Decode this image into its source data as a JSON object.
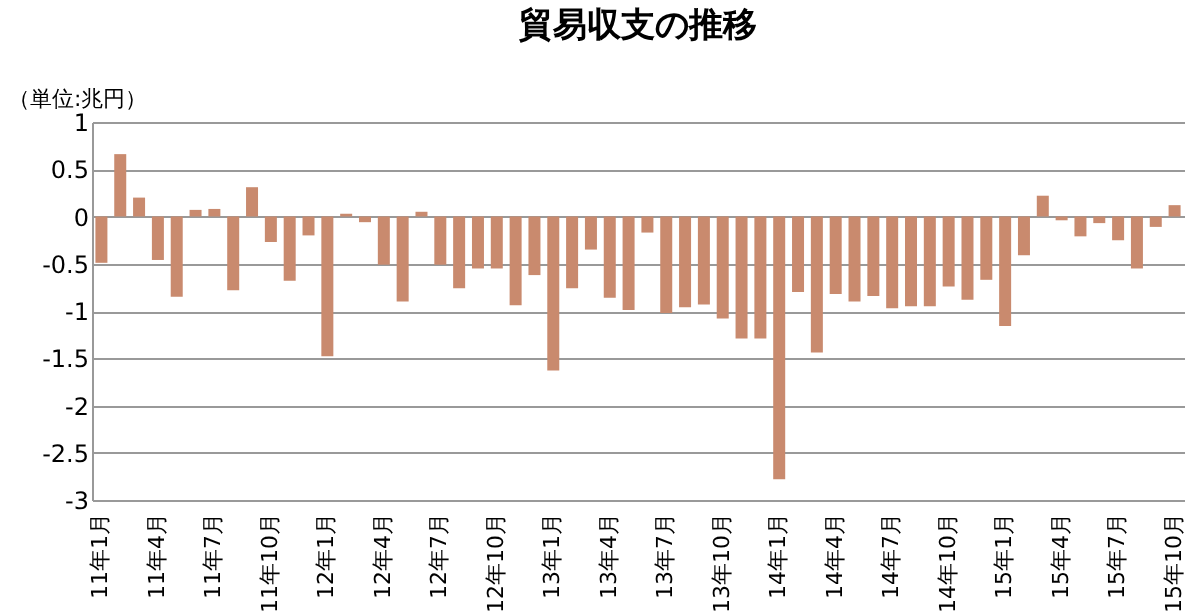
{
  "chart_data": {
    "type": "bar",
    "title": "貿易収支の推移",
    "annotations": [
      "（単位:兆円）"
    ],
    "categories": [
      "11年1月",
      null,
      null,
      "11年4月",
      null,
      null,
      "11年7月",
      null,
      null,
      "11年10月",
      null,
      null,
      "12年1月",
      null,
      null,
      "12年4月",
      null,
      null,
      "12年7月",
      null,
      null,
      "12年10月",
      null,
      null,
      "13年1月",
      null,
      null,
      "13年4月",
      null,
      null,
      "13年7月",
      null,
      null,
      "13年10月",
      null,
      null,
      "14年1月",
      null,
      null,
      "14年4月",
      null,
      null,
      "14年7月",
      null,
      null,
      "14年10月",
      null,
      null,
      "15年1月",
      null,
      null,
      "15年4月",
      null,
      null,
      "15年7月",
      null,
      null,
      "15年10月"
    ],
    "values": [
      -0.49,
      0.66,
      0.2,
      -0.46,
      -0.85,
      0.07,
      0.08,
      -0.78,
      0.31,
      -0.27,
      -0.68,
      -0.2,
      -1.48,
      0.03,
      -0.06,
      -0.51,
      -0.9,
      0.05,
      -0.51,
      -0.76,
      -0.55,
      -0.55,
      -0.94,
      -0.62,
      -1.63,
      -0.76,
      -0.35,
      -0.86,
      -0.99,
      -0.17,
      -1.02,
      -0.96,
      -0.93,
      -1.08,
      -1.29,
      -1.29,
      -2.78,
      -0.8,
      -1.44,
      -0.82,
      -0.9,
      -0.84,
      -0.97,
      -0.95,
      -0.95,
      -0.74,
      -0.88,
      -0.67,
      -1.16,
      -0.41,
      0.22,
      -0.04,
      -0.21,
      -0.07,
      -0.25,
      -0.55,
      -0.11,
      0.12
    ],
    "color": "#c98a6e",
    "ylim": [
      -3,
      1
    ],
    "yticks": [
      -3,
      -2.5,
      -2,
      -1.5,
      -1,
      -0.5,
      0,
      0.5,
      1
    ],
    "grid": "y"
  }
}
